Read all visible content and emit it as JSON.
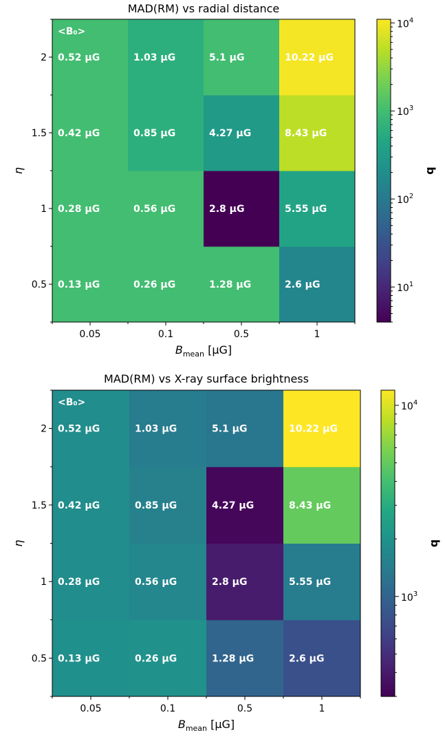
{
  "chart_data": [
    {
      "type": "heatmap",
      "title": "MAD(RM) vs radial distance",
      "xlabel": {
        "main": "B",
        "sub": "mean",
        "unit": " [μG]"
      },
      "ylabel": "η",
      "x_categories": [
        "0.05",
        "0.1",
        "0.5",
        "1"
      ],
      "y_categories": [
        "0.5",
        "1",
        "1.5",
        "2"
      ],
      "colorbar": {
        "label": "q",
        "scale": "log",
        "colormap": "viridis",
        "min": 4,
        "max": 11000,
        "ticks": [
          {
            "value": 10,
            "base": "10",
            "exp": "1"
          },
          {
            "value": 100,
            "base": "10",
            "exp": "2"
          },
          {
            "value": 1000,
            "base": "10",
            "exp": "3"
          },
          {
            "value": 10000,
            "base": "10",
            "exp": "4"
          }
        ]
      },
      "top_left_label": "<B₀>",
      "cell_labels": [
        [
          "0.13 μG",
          "0.26 μG",
          "1.28 μG",
          "2.6 μG"
        ],
        [
          "0.28 μG",
          "0.56 μG",
          "2.8 μG",
          "5.55 μG"
        ],
        [
          "0.42 μG",
          "0.85 μG",
          "4.27 μG",
          "8.43 μG"
        ],
        [
          "0.52 μG",
          "1.03 μG",
          "5.1 μG",
          "10.22 μG"
        ]
      ],
      "values": [
        [
          1000,
          1000,
          1000,
          150
        ],
        [
          1000,
          1000,
          4,
          400
        ],
        [
          1000,
          600,
          300,
          5000
        ],
        [
          1000,
          600,
          1000,
          10000
        ]
      ]
    },
    {
      "type": "heatmap",
      "title": "MAD(RM) vs X-ray surface brightness",
      "xlabel": {
        "main": "B",
        "sub": "mean",
        "unit": " [μG]"
      },
      "ylabel": "η",
      "x_categories": [
        "0.05",
        "0.1",
        "0.5",
        "1"
      ],
      "y_categories": [
        "0.5",
        "1",
        "1.5",
        "2"
      ],
      "colorbar": {
        "label": "q",
        "scale": "log",
        "colormap": "viridis",
        "min": 300,
        "max": 12000,
        "ticks": [
          {
            "value": 1000,
            "base": "10",
            "exp": "3"
          },
          {
            "value": 10000,
            "base": "10",
            "exp": "4"
          }
        ]
      },
      "top_left_label": "<B₀>",
      "cell_labels": [
        [
          "0.13 μG",
          "0.26 μG",
          "1.28 μG",
          "2.6 μG"
        ],
        [
          "0.28 μG",
          "0.56 μG",
          "2.8 μG",
          "5.55 μG"
        ],
        [
          "0.42 μG",
          "0.85 μG",
          "4.27 μG",
          "8.43 μG"
        ],
        [
          "0.52 μG",
          "1.03 μG",
          "5.1 μG",
          "10.22 μG"
        ]
      ],
      "values": [
        [
          1900,
          1950,
          1000,
          750
        ],
        [
          1800,
          1650,
          400,
          1400
        ],
        [
          1800,
          1500,
          320,
          5000
        ],
        [
          1800,
          1400,
          1300,
          12000
        ]
      ]
    }
  ]
}
